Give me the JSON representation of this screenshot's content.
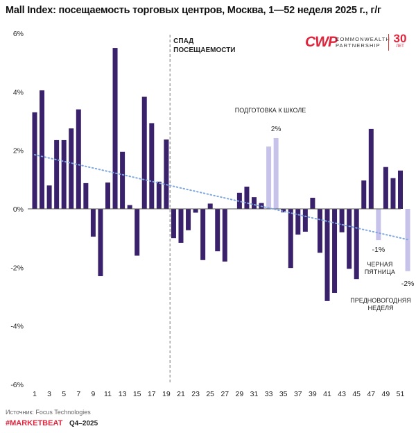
{
  "title": "Mall Index: посещаемость торговых центров, Москва, 1—52 неделя 2025 г., г/г",
  "logo": {
    "mark": "CWP",
    "line1": "COMMONWEALTH",
    "line2": "PARTNERSHIP",
    "age": "30",
    "age_sub": "ЛЕТ"
  },
  "footer": {
    "source": "Источник: Focus Technologies",
    "tag": "#MARKETBEAT",
    "quarter": "Q4–2025"
  },
  "colors": {
    "bar": "#3a216b",
    "highlight": "#c7c2ea",
    "trend": "#7ea6e0",
    "zero": "#555555",
    "divider": "#777777"
  },
  "chart_data": {
    "type": "bar",
    "title": "Mall Index: посещаемость торговых центров, Москва, 1—52 неделя 2025 г., г/г",
    "xlabel": "",
    "ylabel": "",
    "ylim": [
      -6,
      6
    ],
    "yticks": [
      6,
      4,
      2,
      0,
      -2,
      -4,
      -6
    ],
    "ytick_labels": [
      "6%",
      "4%",
      "2%",
      "0%",
      "-2%",
      "-4%",
      "-6%"
    ],
    "xtick_labels": [
      "1",
      "3",
      "5",
      "7",
      "9",
      "11",
      "13",
      "15",
      "17",
      "19",
      "21",
      "23",
      "25",
      "27",
      "29",
      "31",
      "33",
      "35",
      "37",
      "39",
      "41",
      "43",
      "45",
      "47",
      "49",
      "51"
    ],
    "categories": [
      "1",
      "2",
      "3",
      "4",
      "5",
      "6",
      "7",
      "8",
      "9",
      "10",
      "11",
      "12",
      "13",
      "14",
      "15",
      "16",
      "17",
      "18",
      "19",
      "20",
      "21",
      "22",
      "23",
      "24",
      "25",
      "26",
      "27",
      "28",
      "29",
      "30",
      "31",
      "32",
      "33",
      "34",
      "35",
      "36",
      "37",
      "38",
      "39",
      "40",
      "41",
      "42",
      "43",
      "44",
      "45",
      "46",
      "47",
      "48",
      "49",
      "50",
      "51",
      "52"
    ],
    "values": [
      3.3,
      4.05,
      0.8,
      2.35,
      2.35,
      2.75,
      3.4,
      0.88,
      -0.95,
      -2.3,
      0.9,
      5.5,
      1.95,
      0.13,
      -1.6,
      3.83,
      2.93,
      0.93,
      2.37,
      -1.0,
      -1.16,
      -0.73,
      -0.13,
      -1.75,
      0.18,
      -1.45,
      -1.8,
      0.0,
      0.55,
      0.76,
      0.4,
      0.2,
      2.13,
      2.42,
      -0.12,
      -2.02,
      -0.88,
      -0.78,
      0.38,
      -1.5,
      -3.15,
      -2.87,
      -0.8,
      -2.05,
      -2.4,
      0.97,
      2.73,
      -1.07,
      1.43,
      1.05,
      1.31,
      -2.13
    ],
    "highlight_weeks": [
      33,
      34,
      48,
      52
    ],
    "trend": {
      "start": 1.85,
      "end": -1.05
    },
    "divider_week": 20,
    "annotations": [
      {
        "text": "СПАД",
        "week": 20
      },
      {
        "text": "ПОСЕЩАЕМОСТИ",
        "week": 20
      },
      {
        "text": "ПОДГОТОВКА К ШКОЛЕ",
        "week": 34
      },
      {
        "text": "2%",
        "week": 34
      },
      {
        "text": "-1%",
        "week": 48
      },
      {
        "text": "ЧЕРНАЯ",
        "week": 48
      },
      {
        "text": "ПЯТНИЦА",
        "week": 48
      },
      {
        "text": "-2%",
        "week": 52
      },
      {
        "text": "ПРЕДНОВОГОДНЯЯ",
        "week": 52
      },
      {
        "text": "НЕДЕЛЯ",
        "week": 52
      }
    ]
  }
}
